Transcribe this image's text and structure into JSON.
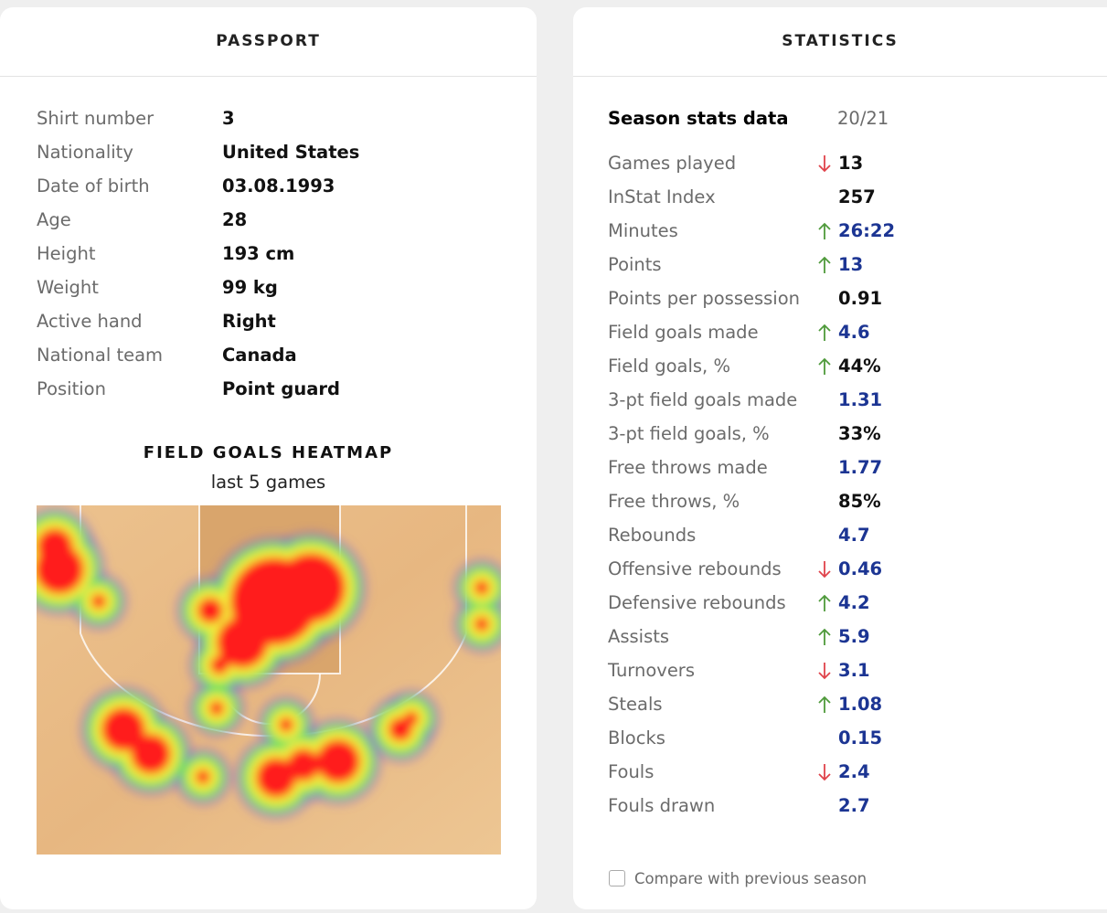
{
  "passport": {
    "title": "PASSPORT",
    "rows": [
      [
        "Shirt number",
        "3"
      ],
      [
        "Nationality",
        "United States"
      ],
      [
        "Date of birth",
        "03.08.1993"
      ],
      [
        "Age",
        "28"
      ],
      [
        "Height",
        "193 cm"
      ],
      [
        "Weight",
        "99 kg"
      ],
      [
        "Active hand",
        "Right"
      ],
      [
        "National team",
        "Canada"
      ],
      [
        "Position",
        "Point guard"
      ]
    ]
  },
  "heatmap": {
    "title": "FIELD GOALS HEATMAP",
    "subtitle": "last 5 games"
  },
  "statistics": {
    "title": "STATISTICS",
    "season_label": "Season stats data",
    "season": "20/21",
    "rows": [
      {
        "label": "Games played",
        "value": "13",
        "trend": "down",
        "color": "#111111"
      },
      {
        "label": "InStat Index",
        "value": "257",
        "color": "#111111"
      },
      {
        "label": "Minutes",
        "value": "26:22",
        "trend": "up",
        "color": "#1c3593"
      },
      {
        "label": "Points",
        "value": "13",
        "trend": "up",
        "color": "#1c3593"
      },
      {
        "label": "Points per possession",
        "value": "0.91",
        "color": "#111111"
      },
      {
        "label": "Field goals made",
        "value": "4.6",
        "trend": "up",
        "color": "#1c3593"
      },
      {
        "label": "Field goals, %",
        "value": "44%",
        "trend": "up",
        "color": "#111111"
      },
      {
        "label": "3-pt field goals made",
        "value": "1.31",
        "color": "#1c3593"
      },
      {
        "label": "3-pt field goals, %",
        "value": "33%",
        "color": "#111111"
      },
      {
        "label": "Free throws made",
        "value": "1.77",
        "color": "#1c3593"
      },
      {
        "label": "Free throws, %",
        "value": "85%",
        "color": "#111111"
      },
      {
        "label": "Rebounds",
        "value": "4.7",
        "color": "#1c3593"
      },
      {
        "label": "Offensive rebounds",
        "value": "0.46",
        "trend": "down",
        "color": "#1c3593"
      },
      {
        "label": "Defensive rebounds",
        "value": "4.2",
        "trend": "up",
        "color": "#1c3593"
      },
      {
        "label": "Assists",
        "value": "5.9",
        "trend": "up",
        "color": "#1c3593"
      },
      {
        "label": "Turnovers",
        "value": "3.1",
        "trend": "down",
        "color": "#1c3593"
      },
      {
        "label": "Steals",
        "value": "1.08",
        "trend": "up",
        "color": "#1c3593"
      },
      {
        "label": "Blocks",
        "value": "0.15",
        "color": "#1c3593"
      },
      {
        "label": "Fouls",
        "value": "2.4",
        "trend": "down",
        "color": "#1c3593"
      },
      {
        "label": "Fouls drawn",
        "value": "2.7",
        "color": "#1c3593"
      }
    ],
    "compare_label": "Compare with previous season"
  }
}
